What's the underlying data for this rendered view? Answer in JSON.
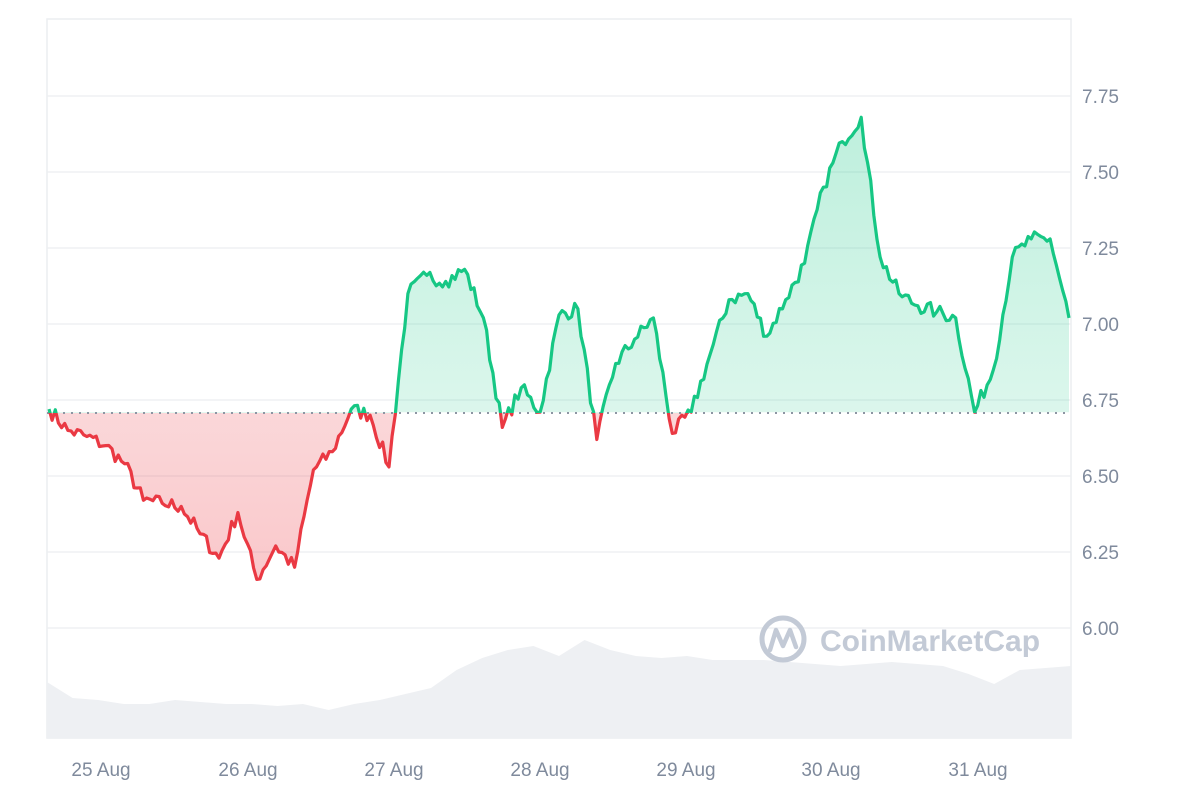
{
  "chart_data": {
    "type": "line",
    "title": "",
    "xlabel": "",
    "ylabel": "",
    "ylim": [
      5.75,
      8.0
    ],
    "y_ticks": [
      "7.75",
      "7.50",
      "7.25",
      "7.00",
      "6.75",
      "6.50",
      "6.25",
      "6.00"
    ],
    "x_ticks": [
      "25 Aug",
      "26 Aug",
      "27 Aug",
      "28 Aug",
      "29 Aug",
      "30 Aug",
      "31 Aug"
    ],
    "baseline": 6.71,
    "grid": true,
    "legend": null,
    "colors": {
      "up_line": "#16c784",
      "down_line": "#ea3943",
      "up_fill": "#16c784",
      "down_fill": "#ea3943",
      "volume_fill": "#eef0f3",
      "baseline_dots": "#8d95a3",
      "tick_text": "#7f8a9c",
      "watermark": "#c3cad6"
    },
    "series": [
      {
        "name": "Price",
        "x": [
          "24 Aug 21:00",
          "25 Aug 00:00",
          "25 Aug 03:00",
          "25 Aug 06:00",
          "25 Aug 09:00",
          "25 Aug 12:00",
          "25 Aug 15:00",
          "25 Aug 18:00",
          "25 Aug 21:00",
          "26 Aug 00:00",
          "26 Aug 03:00",
          "26 Aug 06:00",
          "26 Aug 09:00",
          "26 Aug 12:00",
          "26 Aug 15:00",
          "26 Aug 18:00",
          "26 Aug 21:00",
          "27 Aug 00:00",
          "27 Aug 03:00",
          "27 Aug 06:00",
          "27 Aug 09:00",
          "27 Aug 12:00",
          "27 Aug 15:00",
          "27 Aug 18:00",
          "27 Aug 21:00",
          "28 Aug 00:00",
          "28 Aug 03:00",
          "28 Aug 06:00",
          "28 Aug 09:00",
          "28 Aug 12:00",
          "28 Aug 15:00",
          "28 Aug 18:00",
          "28 Aug 21:00",
          "29 Aug 00:00",
          "29 Aug 03:00",
          "29 Aug 06:00",
          "29 Aug 09:00",
          "29 Aug 12:00",
          "29 Aug 15:00",
          "29 Aug 18:00",
          "29 Aug 21:00",
          "30 Aug 00:00",
          "30 Aug 03:00",
          "30 Aug 06:00",
          "30 Aug 09:00",
          "30 Aug 12:00",
          "30 Aug 15:00",
          "30 Aug 18:00",
          "30 Aug 21:00",
          "31 Aug 00:00",
          "31 Aug 03:00",
          "31 Aug 06:00",
          "31 Aug 09:00",
          "31 Aug 12:00",
          "31 Aug 15:00"
        ],
        "values": [
          6.72,
          6.65,
          6.63,
          6.6,
          6.54,
          6.42,
          6.41,
          6.4,
          6.31,
          6.23,
          6.38,
          6.16,
          6.27,
          6.2,
          6.52,
          6.58,
          6.72,
          6.7,
          6.53,
          7.1,
          7.16,
          7.14,
          7.18,
          7.02,
          6.66,
          6.79,
          6.71,
          7.03,
          7.05,
          6.62,
          6.87,
          6.95,
          7.02,
          6.64,
          6.71,
          6.9,
          7.08,
          7.1,
          6.96,
          7.08,
          7.2,
          7.45,
          7.6,
          7.68,
          7.22,
          7.1,
          7.06,
          7.04,
          7.02,
          6.71,
          6.85,
          7.22,
          7.28,
          7.28,
          7.02
        ]
      }
    ],
    "volume": {
      "name": "Volume",
      "relative_values": [
        0.58,
        0.42,
        0.4,
        0.36,
        0.36,
        0.4,
        0.38,
        0.36,
        0.36,
        0.34,
        0.36,
        0.3,
        0.36,
        0.4,
        0.46,
        0.52,
        0.7,
        0.82,
        0.9,
        0.94,
        0.84,
        1.0,
        0.9,
        0.84,
        0.82,
        0.84,
        0.8,
        0.8,
        0.8,
        0.78,
        0.76,
        0.74,
        0.76,
        0.78,
        0.76,
        0.74,
        0.66,
        0.56,
        0.7,
        0.72,
        0.74
      ]
    }
  },
  "watermark": {
    "text": "CoinMarketCap"
  }
}
